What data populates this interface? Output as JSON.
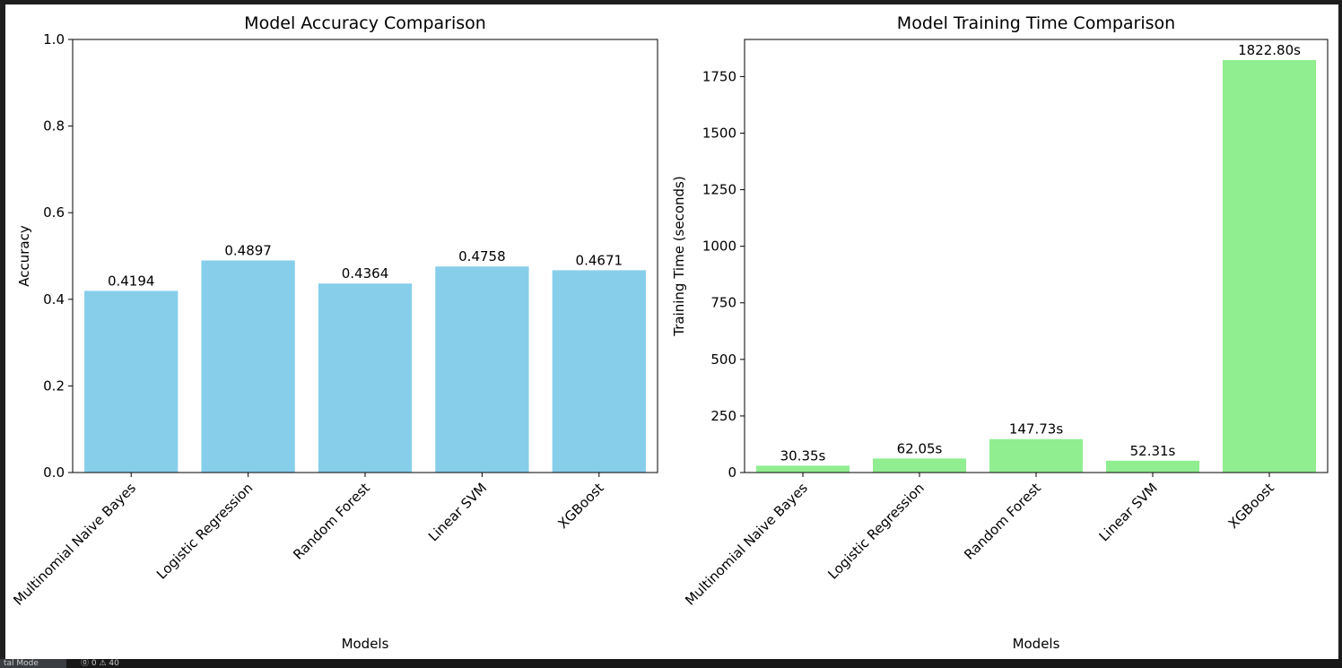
{
  "chart_data": [
    {
      "type": "bar",
      "title": "Model Accuracy Comparison",
      "xlabel": "Models",
      "ylabel": "Accuracy",
      "categories": [
        "Multinomial Naive Bayes",
        "Logistic Regression",
        "Random Forest",
        "Linear SVM",
        "XGBoost"
      ],
      "values": [
        0.4194,
        0.4897,
        0.4364,
        0.4758,
        0.4671
      ],
      "value_labels": [
        "0.4194",
        "0.4897",
        "0.4364",
        "0.4758",
        "0.4671"
      ],
      "ylim": [
        0,
        1.0
      ],
      "yticks": [
        0.0,
        0.2,
        0.4,
        0.6,
        0.8,
        1.0
      ],
      "ytick_labels": [
        "0.0",
        "0.2",
        "0.4",
        "0.6",
        "0.8",
        "1.0"
      ],
      "bar_color": "#87ceeb",
      "grid": false
    },
    {
      "type": "bar",
      "title": "Model Training Time Comparison",
      "xlabel": "Models",
      "ylabel": "Training Time (seconds)",
      "categories": [
        "Multinomial Naive Bayes",
        "Logistic Regression",
        "Random Forest",
        "Linear SVM",
        "XGBoost"
      ],
      "values": [
        30.35,
        62.05,
        147.73,
        52.31,
        1822.8
      ],
      "value_labels": [
        "30.35s",
        "62.05s",
        "147.73s",
        "52.31s",
        "1822.80s"
      ],
      "ylim": [
        0,
        1914
      ],
      "yticks": [
        0,
        250,
        500,
        750,
        1000,
        1250,
        1500,
        1750
      ],
      "ytick_labels": [
        "0",
        "250",
        "500",
        "750",
        "1000",
        "1250",
        "1500",
        "1750"
      ],
      "bar_color": "#90ee90",
      "grid": false
    }
  ],
  "status_bar": {
    "mode_label": "tal Mode",
    "problems_label": "⓪ 0 ⚠ 40"
  }
}
